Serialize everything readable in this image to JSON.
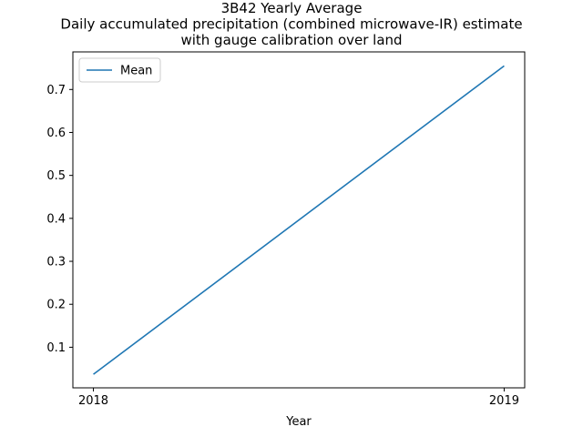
{
  "chart_data": {
    "type": "line",
    "title_lines": [
      "3B42 Yearly Average",
      "Daily accumulated precipitation (combined microwave-IR) estimate",
      "with  gauge calibration over land"
    ],
    "xlabel": "Year",
    "ylabel": "",
    "x": [
      2018,
      2019
    ],
    "x_tick_labels": [
      "2018",
      "2019"
    ],
    "y_ticks": [
      0.1,
      0.2,
      0.3,
      0.4,
      0.5,
      0.6,
      0.7
    ],
    "y_tick_labels": [
      "0.1",
      "0.2",
      "0.3",
      "0.4",
      "0.5",
      "0.6",
      "0.7"
    ],
    "xlim": [
      2017.95,
      2019.05
    ],
    "ylim": [
      0.0055,
      0.7875
    ],
    "grid": false,
    "legend_position": "upper-left",
    "series": [
      {
        "name": "Mean",
        "color": "#1f77b4",
        "values": [
          0.037,
          0.755
        ]
      }
    ]
  }
}
